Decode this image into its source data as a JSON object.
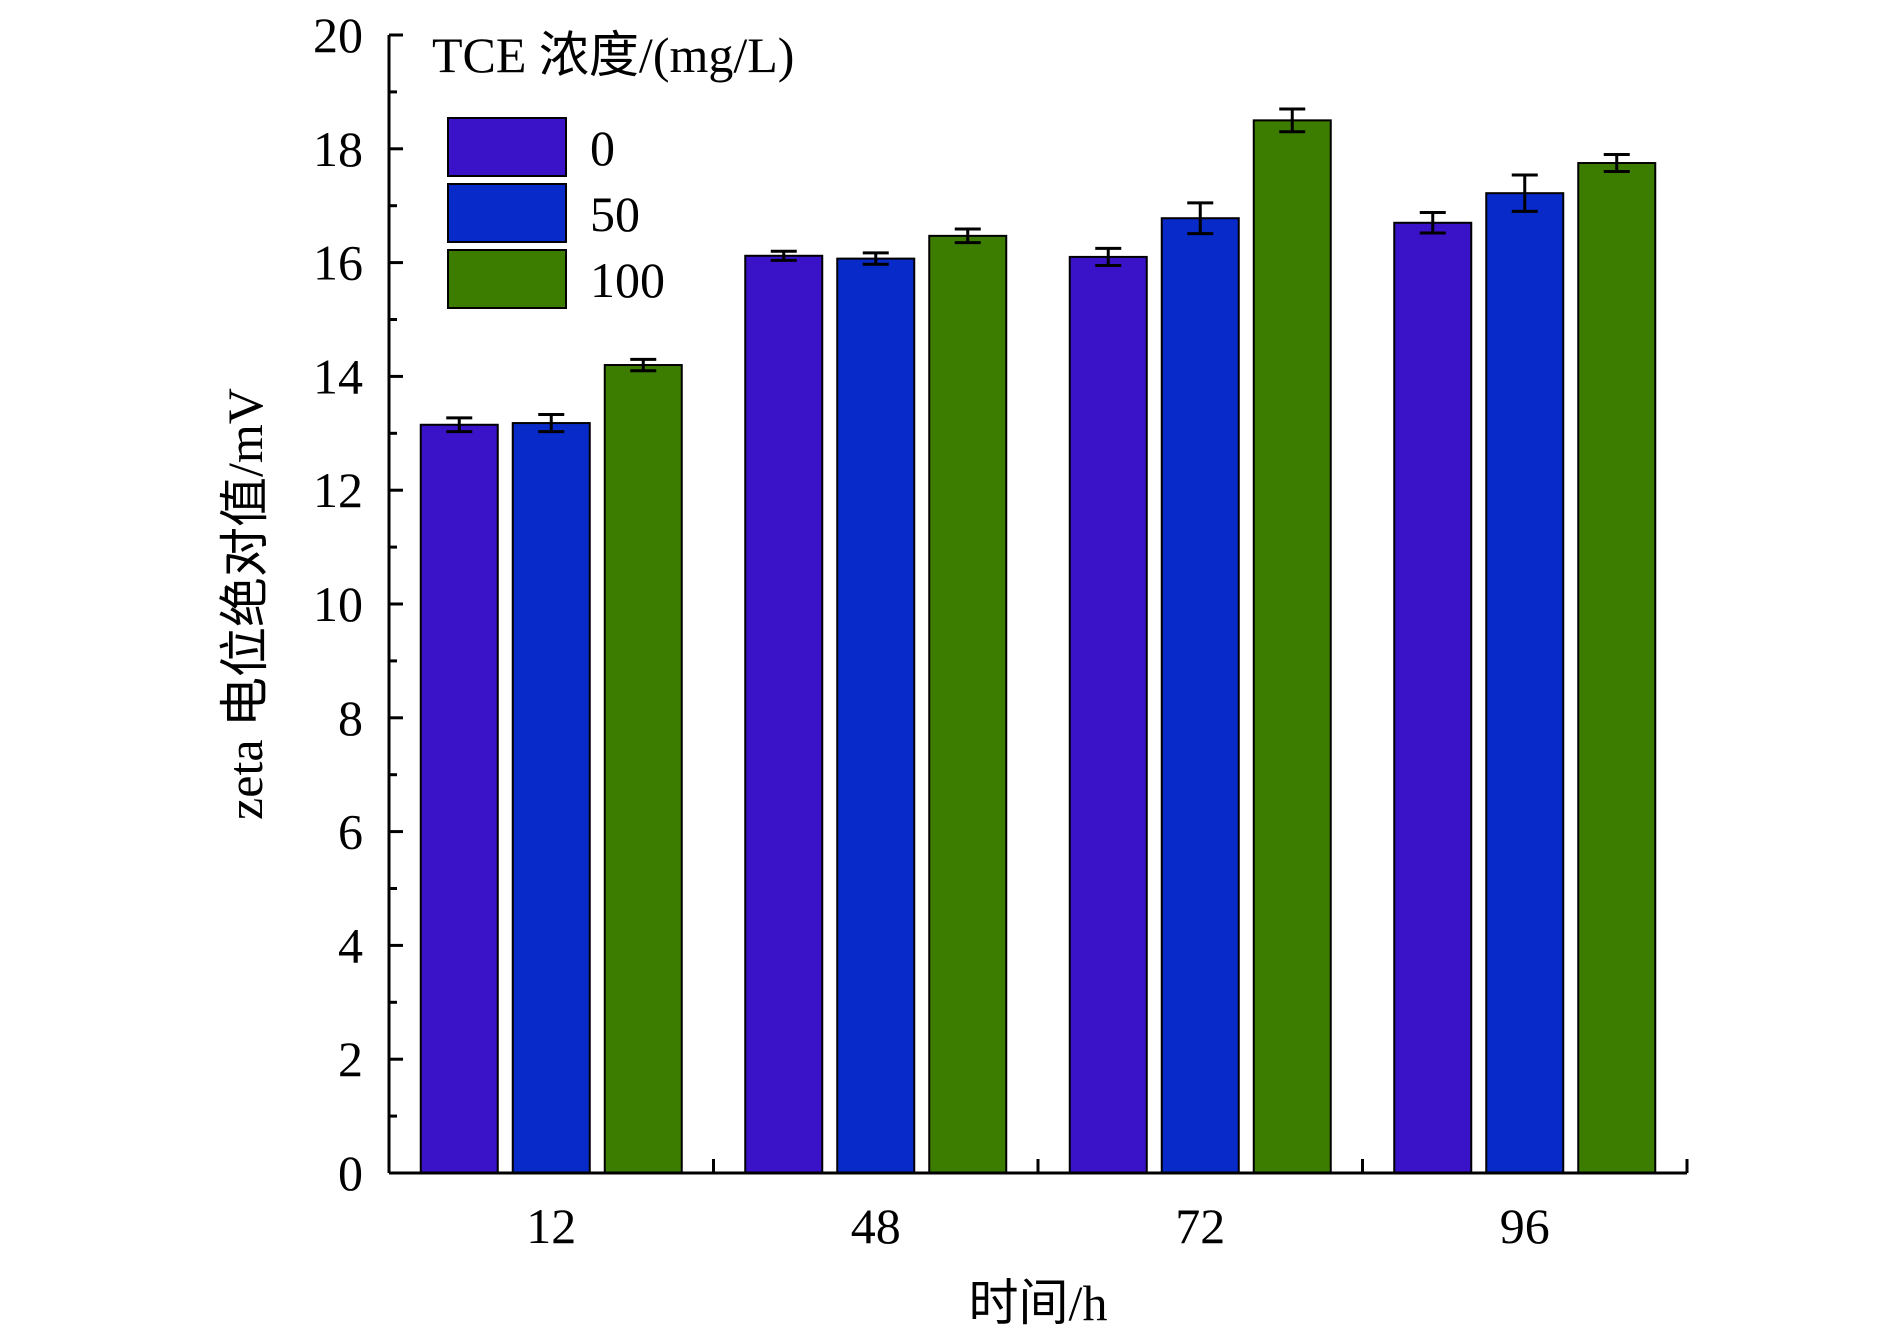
{
  "chart_data": {
    "type": "bar",
    "title": "",
    "xlabel": "时间/h",
    "ylabel": "zeta 电位绝对值/mV",
    "categories": [
      "12",
      "48",
      "72",
      "96"
    ],
    "ylim": [
      0,
      20
    ],
    "yticks": [
      0,
      2,
      4,
      6,
      8,
      10,
      12,
      14,
      16,
      18,
      20
    ],
    "grid": false,
    "legend": {
      "title": "TCE 浓度/(mg/L)",
      "position": "top-left"
    },
    "series": [
      {
        "name": "0",
        "color": "#3a12c8",
        "values": [
          13.15,
          16.12,
          16.1,
          16.7
        ],
        "errors": [
          0.12,
          0.08,
          0.15,
          0.18
        ]
      },
      {
        "name": "50",
        "color": "#082ac8",
        "values": [
          13.18,
          16.07,
          16.78,
          17.22
        ],
        "errors": [
          0.15,
          0.1,
          0.27,
          0.32
        ]
      },
      {
        "name": "100",
        "color": "#3c7d00",
        "values": [
          14.2,
          16.47,
          18.5,
          17.75
        ],
        "errors": [
          0.1,
          0.12,
          0.2,
          0.15
        ]
      }
    ]
  }
}
